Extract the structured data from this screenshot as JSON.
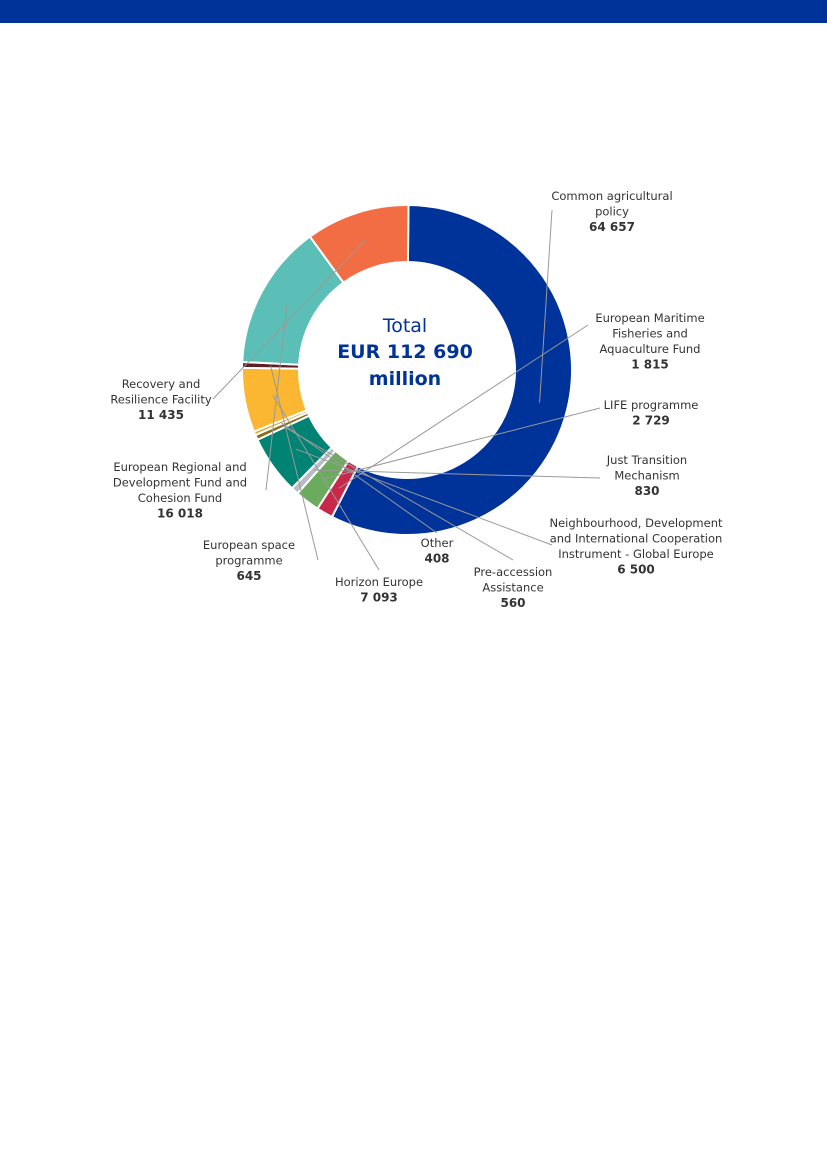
{
  "colors": {
    "top_bar": "#003399",
    "center_text": "#003399",
    "leader_line": "#999999"
  },
  "center": {
    "line1": "Total",
    "line2": "EUR 112 690",
    "line3": "million"
  },
  "chart_data": {
    "type": "pie",
    "variant": "donut",
    "unit": "EUR million",
    "total": 112690,
    "slices": [
      {
        "label": [
          "Common agricultural",
          "policy"
        ],
        "value": 64657,
        "value_text": "64 657",
        "color": "#003399"
      },
      {
        "label": [
          "European Maritime",
          "Fisheries and",
          "Aquaculture Fund"
        ],
        "value": 1815,
        "value_text": "1 815",
        "color": "#c8284a"
      },
      {
        "label": [
          "LIFE programme"
        ],
        "value": 2729,
        "value_text": "2 729",
        "color": "#6aab5e"
      },
      {
        "label": [
          "Just Transition",
          "Mechanism"
        ],
        "value": 830,
        "value_text": "830",
        "color": "#b8bcc4"
      },
      {
        "label": [
          "Neighbourhood, Development",
          "and International Cooperation",
          "Instrument - Global Europe"
        ],
        "value": 6500,
        "value_text": "6 500",
        "color": "#008373"
      },
      {
        "label": [
          "Pre-accession",
          "Assistance"
        ],
        "value": 560,
        "value_text": "560",
        "color": "#8a6d1c"
      },
      {
        "label": [
          "Other"
        ],
        "value": 408,
        "value_text": "408",
        "color": "#d9a830"
      },
      {
        "label": [
          "Horizon Europe"
        ],
        "value": 7093,
        "value_text": "7 093",
        "color": "#fbb731"
      },
      {
        "label": [
          "European space",
          "programme"
        ],
        "value": 645,
        "value_text": "645",
        "color": "#5c1f24"
      },
      {
        "label": [
          "European Regional and",
          "Development Fund and",
          "Cohesion Fund"
        ],
        "value": 16018,
        "value_text": "16 018",
        "color": "#5bbfb7"
      },
      {
        "label": [
          "Recovery and",
          "Resilience Facility"
        ],
        "value": 11435,
        "value_text": "11 435",
        "color": "#f26d44"
      }
    ]
  }
}
